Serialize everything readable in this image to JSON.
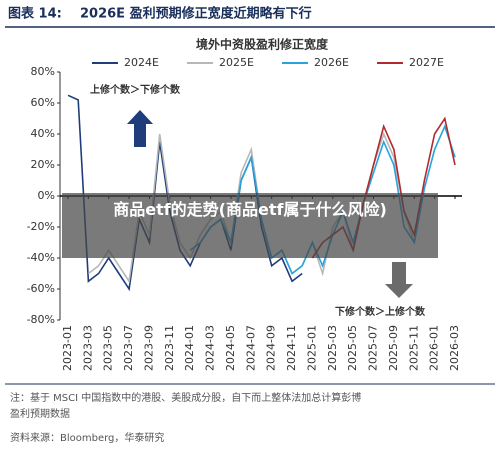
{
  "header": {
    "prefix": "图表 14:",
    "title": "2026E 盈利预期修正宽度近期略有下行"
  },
  "chart_data": {
    "type": "line",
    "title": "境外中资股盈利修正宽度",
    "categories": [
      "2023-01",
      null,
      "2023-03",
      null,
      "2023-05",
      null,
      "2023-07",
      null,
      "2023-09",
      null,
      "2023-11",
      null,
      "2024-01",
      null,
      "2024-03",
      null,
      "2024-05",
      null,
      "2024-07",
      null,
      "2024-09",
      null,
      "2024-11",
      null,
      "2025-01",
      null,
      "2025-03",
      null,
      "2025-05",
      null,
      "2025-07",
      null,
      "2025-09",
      null,
      "2025-11",
      null,
      "2026-01",
      null,
      "2026-03"
    ],
    "series": [
      {
        "name": "2024E",
        "color": "#1f3d7a",
        "values": [
          65,
          62,
          -55,
          -50,
          -40,
          -50,
          -60,
          -15,
          -30,
          35,
          -10,
          -35,
          -45,
          -30,
          -20,
          -15,
          -35,
          10,
          25,
          -20,
          -45,
          -40,
          -55,
          -50,
          null,
          null,
          null,
          null,
          null,
          null,
          null,
          null,
          null,
          null,
          null,
          null,
          null,
          null,
          null
        ]
      },
      {
        "name": "2025E",
        "color": "#b8b8b8",
        "values": [
          null,
          null,
          -50,
          -45,
          -35,
          -45,
          -55,
          -10,
          -25,
          40,
          -5,
          -30,
          -40,
          -25,
          -15,
          -10,
          -30,
          15,
          30,
          -15,
          -40,
          -35,
          -50,
          -45,
          -30,
          -50,
          -20,
          -10,
          -35,
          -5,
          20,
          40,
          25,
          -10,
          -30,
          null,
          null,
          null,
          null
        ]
      },
      {
        "name": "2026E",
        "color": "#29a3dc",
        "values": [
          null,
          null,
          null,
          null,
          null,
          null,
          null,
          null,
          null,
          null,
          null,
          null,
          -35,
          -30,
          -20,
          -15,
          -30,
          10,
          25,
          -15,
          -40,
          -35,
          -50,
          -45,
          -30,
          -45,
          -25,
          -10,
          -30,
          -5,
          15,
          35,
          20,
          -20,
          -30,
          5,
          30,
          45,
          25
        ]
      },
      {
        "name": "2027E",
        "color": "#b22a2e",
        "values": [
          null,
          null,
          null,
          null,
          null,
          null,
          null,
          null,
          null,
          null,
          null,
          null,
          null,
          null,
          null,
          null,
          null,
          null,
          null,
          null,
          null,
          null,
          null,
          null,
          -40,
          -30,
          -25,
          -20,
          -35,
          -5,
          20,
          45,
          30,
          -10,
          -25,
          10,
          40,
          50,
          20
        ]
      }
    ],
    "ylim": [
      -80,
      80
    ],
    "yticks": [
      {
        "value": -80,
        "label": "-80%"
      },
      {
        "value": -60,
        "label": "-60%"
      },
      {
        "value": -40,
        "label": "-40%"
      },
      {
        "value": -20,
        "label": "-20%"
      },
      {
        "value": 0,
        "label": "0%"
      },
      {
        "value": 20,
        "label": "20%"
      },
      {
        "value": 40,
        "label": "40%"
      },
      {
        "value": 60,
        "label": "60%"
      },
      {
        "value": 80,
        "label": "80%"
      }
    ],
    "annotations": [
      "上修个数＞下修个数",
      "下修个数＞上修个数"
    ]
  },
  "notes": [
    "注：基于 MSCI 中国指数中的港股、美股成分股，自下而上整体法加总计算彭博",
    "盈利预期数据",
    "资料来源：Bloomberg，华泰研究"
  ],
  "overlay": {
    "text": "商品etf的走势(商品etf属于什么风险)"
  }
}
